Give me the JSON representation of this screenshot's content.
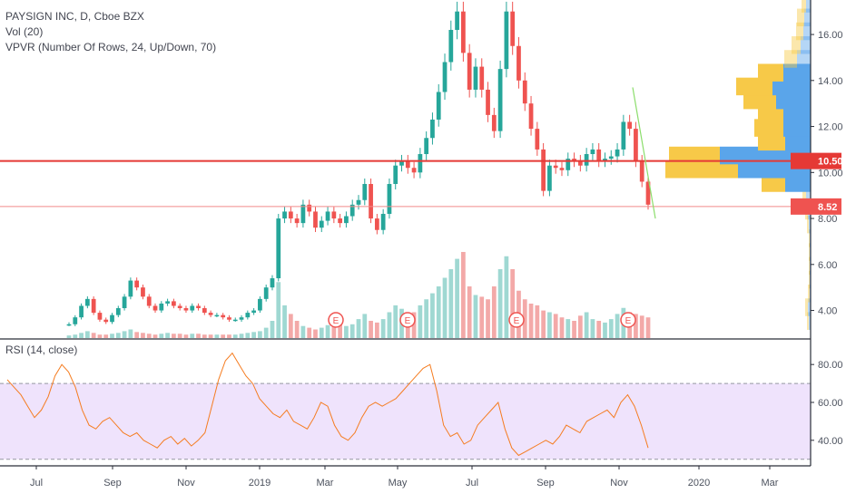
{
  "legend": {
    "symbol": "PAYSIGN INC, D, Cboe BZX",
    "volume": "Vol (20)",
    "vpvr": "VPVR (Number Of Rows, 24, Up/Down, 70)"
  },
  "rsi_title": "RSI (14, close)",
  "price_labels": {
    "horizontal_line": "10.50",
    "last_price": "8.52"
  },
  "earnings_marker": "E",
  "colors": {
    "up": "#26a69a",
    "down": "#ef5350",
    "hline": "#e53935",
    "last_line": "#f28b8b",
    "trend": "#8bdd6b",
    "vp_up": "#5aa5ea",
    "vp_down": "#f7c948",
    "rsi_line": "#f57c20",
    "rsi_band": "#efe3fc",
    "vol_up": "#9fd8d2",
    "vol_down": "#f3a9a8"
  },
  "chart_data": [
    {
      "type": "line",
      "title": "PAYSIGN INC, D, Cboe BZX",
      "x_ticks": [
        "Jul",
        "Sep",
        "Nov",
        "2019",
        "Mar",
        "May",
        "Jul",
        "Sep",
        "Nov",
        "2020",
        "Mar"
      ],
      "y_ticks": [
        "4.00",
        "6.00",
        "8.00",
        "10.00",
        "12.00",
        "14.00",
        "16.00"
      ],
      "ylim": [
        2.8,
        17.5
      ],
      "series": [
        {
          "values": [
            3.4,
            3.7,
            4.2,
            4.5,
            3.9,
            3.6,
            3.5,
            3.8,
            4.1,
            4.6,
            5.3,
            5.0,
            4.6,
            4.2,
            4.0,
            4.3,
            4.4,
            4.2,
            4.1,
            4.0,
            4.2,
            4.1,
            3.9,
            3.8,
            3.8,
            3.7,
            3.6,
            3.6,
            3.7,
            3.9,
            4.0,
            4.5,
            5.0,
            5.4,
            8.0,
            8.3,
            8.0,
            7.8,
            8.6,
            8.3,
            7.6,
            7.9,
            8.3,
            8.0,
            7.8,
            8.1,
            8.6,
            8.8,
            9.5,
            8.0,
            7.5,
            8.2,
            9.5,
            10.3,
            10.5,
            10.2,
            10.0,
            10.8,
            11.5,
            12.3,
            13.5,
            14.8,
            16.2,
            17.0,
            15.2,
            13.6,
            14.6,
            13.6,
            12.5,
            11.8,
            14.5,
            17.0,
            15.5,
            14.0,
            13.0,
            11.9,
            11.0,
            9.2,
            10.3,
            10.2,
            10.1,
            10.6,
            10.5,
            10.3,
            10.8,
            11.0,
            10.5,
            10.6,
            10.7,
            11.0,
            12.2,
            11.9,
            10.5,
            9.6,
            8.6
          ],
          "name": ""
        }
      ]
    },
    {
      "type": "bar",
      "title": "Vol (20)",
      "values": [
        3,
        4,
        6,
        8,
        6,
        4,
        4,
        5,
        6,
        8,
        10,
        7,
        6,
        5,
        4,
        5,
        6,
        5,
        5,
        4,
        5,
        5,
        4,
        4,
        4,
        4,
        4,
        4,
        5,
        6,
        7,
        8,
        12,
        20,
        65,
        38,
        28,
        20,
        14,
        12,
        10,
        12,
        15,
        18,
        16,
        14,
        16,
        22,
        28,
        20,
        18,
        22,
        30,
        38,
        34,
        30,
        30,
        38,
        45,
        52,
        60,
        70,
        80,
        92,
        100,
        60,
        50,
        48,
        45,
        60,
        80,
        95,
        80,
        55,
        45,
        40,
        38,
        32,
        30,
        28,
        24,
        22,
        20,
        26,
        30,
        22,
        20,
        18,
        22,
        28,
        35,
        30,
        28,
        26,
        24
      ],
      "xlabel": "",
      "ylabel": ""
    },
    {
      "type": "bar",
      "title": "VPVR (Number Of Rows, 24, Up/Down, 70)",
      "categories": [
        3.5,
        4.1,
        4.7,
        5.3,
        5.9,
        6.5,
        7.1,
        7.7,
        8.3,
        8.9,
        9.5,
        10.1,
        10.7,
        11.3,
        11.9,
        12.5,
        13.1,
        13.7,
        14.3,
        14.9,
        15.5,
        16.1,
        16.7,
        17.3
      ],
      "series": [
        {
          "name": "",
          "values": [
            2,
            3,
            2,
            1,
            1,
            1,
            1,
            2,
            3,
            4,
            26,
            80,
            56,
            30,
            32,
            28,
            36,
            40,
            28,
            14,
            10,
            8,
            8,
            5
          ]
        },
        {
          "name": "",
          "values": [
            2,
            3,
            1,
            1,
            1,
            1,
            1,
            2,
            3,
            5,
            28,
            80,
            100,
            28,
            30,
            30,
            38,
            42,
            30,
            15,
            11,
            8,
            7,
            5
          ]
        }
      ]
    },
    {
      "type": "line",
      "title": "RSI (14, close)",
      "y_ticks": [
        "40.00",
        "60.00",
        "80.00"
      ],
      "ylim": [
        27,
        93
      ],
      "band": [
        30,
        70
      ],
      "series": [
        {
          "values": [
            72,
            68,
            64,
            58,
            52,
            56,
            63,
            74,
            80,
            76,
            68,
            56,
            48,
            46,
            50,
            52,
            48,
            44,
            42,
            44,
            40,
            38,
            36,
            40,
            42,
            38,
            41,
            37,
            40,
            44,
            58,
            72,
            82,
            86,
            80,
            74,
            70,
            62,
            58,
            54,
            52,
            56,
            50,
            48,
            46,
            52,
            60,
            58,
            48,
            42,
            40,
            44,
            52,
            58,
            60,
            58,
            60,
            62,
            66,
            70,
            74,
            78,
            80,
            66,
            48,
            42,
            44,
            38,
            40,
            48,
            52,
            56,
            60,
            46,
            36,
            32,
            34,
            36,
            38,
            40,
            38,
            42,
            48,
            46,
            44,
            50,
            52,
            54,
            56,
            52,
            60,
            64,
            58,
            48,
            36
          ],
          "name": ""
        }
      ]
    }
  ]
}
